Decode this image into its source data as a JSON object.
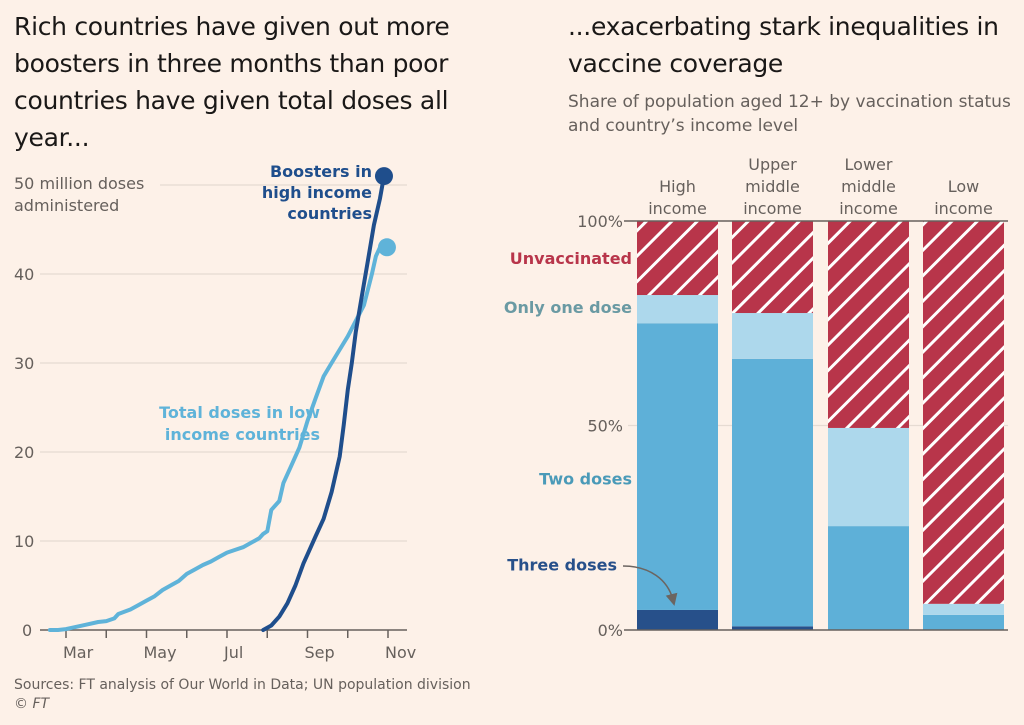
{
  "left_title": "Rich countries have given out more boosters in three months than poor countries have given total doses all year...",
  "right_title": "...exacerbating stark inequalities in vaccine coverage",
  "right_subtitle": "Share of population aged 12+ by vaccination status and country’s income level",
  "source": "Sources: FT analysis of Our World in Data; UN population division",
  "credit": "© FT",
  "colors": {
    "background": "#fdf1e8",
    "boosters": "#1f4e8c",
    "total_low": "#5fb3d9",
    "unvaccinated": "#b8354a",
    "one_dose": "#add8ec",
    "two_doses": "#5eb0d8",
    "three_doses": "#27508a",
    "unvaccinated_label": "#b8354a",
    "one_dose_label": "#6a9aa3",
    "two_doses_label": "#4a9ab8",
    "three_doses_label": "#27508a"
  },
  "chart_data": [
    {
      "type": "line",
      "title": "Rich countries have given out more boosters in three months than poor countries have given total doses all year...",
      "ylabel": "50 million doses administered",
      "ylabel_lines": [
        "50 million doses",
        "administered"
      ],
      "xlabel": "",
      "ylim": [
        0,
        50
      ],
      "yticks": [
        0,
        10,
        20,
        30,
        40,
        50
      ],
      "ytick_labels": [
        "0",
        "10",
        "20",
        "30",
        "40",
        ""
      ],
      "xlim_months": [
        1.6,
        10.5
      ],
      "xticks_months": [
        2,
        3,
        4,
        5,
        6,
        7,
        8,
        9,
        10
      ],
      "xtick_labels": [
        {
          "month": 2,
          "label": "Mar"
        },
        {
          "month": 4,
          "label": "May"
        },
        {
          "month": 6,
          "label": "Jul"
        },
        {
          "month": 8,
          "label": "Sep"
        },
        {
          "month": 10,
          "label": "Nov"
        }
      ],
      "grid": true,
      "series": [
        {
          "name": "Total doses in low income countries",
          "label_lines": [
            "Total doses in low",
            "income countries"
          ],
          "x": [
            1.6,
            1.8,
            2.0,
            2.2,
            2.5,
            2.8,
            3.0,
            3.2,
            3.3,
            3.6,
            3.8,
            4.0,
            4.2,
            4.4,
            4.6,
            4.8,
            5.0,
            5.2,
            5.4,
            5.6,
            5.8,
            6.0,
            6.2,
            6.4,
            6.6,
            6.8,
            6.9,
            7.0,
            7.1,
            7.3,
            7.4,
            7.6,
            7.8,
            8.0,
            8.2,
            8.4,
            8.6,
            8.8,
            9.0,
            9.4,
            9.6,
            9.7,
            9.8
          ],
          "y": [
            0,
            0,
            0.1,
            0.3,
            0.6,
            0.9,
            1.0,
            1.3,
            1.8,
            2.3,
            2.8,
            3.3,
            3.8,
            4.5,
            5.0,
            5.5,
            6.3,
            6.8,
            7.3,
            7.7,
            8.2,
            8.7,
            9.0,
            9.3,
            9.8,
            10.3,
            10.8,
            11.1,
            13.5,
            14.5,
            16.5,
            18.5,
            20.5,
            23.5,
            26.0,
            28.5,
            30.0,
            31.5,
            33.0,
            36.5,
            40.0,
            42.0,
            43.0
          ]
        },
        {
          "name": "Boosters in high income countries",
          "label_lines": [
            "Boosters in",
            "high income",
            "countries"
          ],
          "x": [
            6.9,
            7.1,
            7.3,
            7.5,
            7.7,
            7.9,
            8.0,
            8.2,
            8.4,
            8.6,
            8.8,
            8.9,
            9.0,
            9.1,
            9.2,
            9.35,
            9.5,
            9.65,
            9.8,
            9.9
          ],
          "y": [
            0,
            0.5,
            1.5,
            3.0,
            5.0,
            7.5,
            8.5,
            10.5,
            12.5,
            15.5,
            19.5,
            23.0,
            27.0,
            30.0,
            33.5,
            37.5,
            41.5,
            45.5,
            48.5,
            51.0
          ]
        }
      ]
    },
    {
      "type": "bar",
      "stacked": true,
      "title": "...exacerbating stark inequalities in vaccine coverage",
      "subtitle": "Share of population aged 12+ by vaccination status and country’s income level",
      "ylim": [
        0,
        100
      ],
      "yticks": [
        0,
        50,
        100
      ],
      "ytick_labels": [
        "0%",
        "50%",
        "100%"
      ],
      "categories": [
        "High income",
        "Upper middle income",
        "Lower middle income",
        "Low income"
      ],
      "category_lines": [
        [
          "High",
          "income"
        ],
        [
          "Upper",
          "middle",
          "income"
        ],
        [
          "Lower",
          "middle",
          "income"
        ],
        [
          "Low",
          "income"
        ]
      ],
      "series": [
        {
          "name": "Three doses",
          "values": [
            4.9,
            0.9,
            0.0,
            0.0
          ]
        },
        {
          "name": "Two doses",
          "values": [
            70.1,
            65.4,
            25.4,
            3.7
          ]
        },
        {
          "name": "Only one dose",
          "values": [
            6.9,
            11.2,
            24.0,
            2.7
          ]
        },
        {
          "name": "Unvaccinated",
          "values": [
            18.1,
            22.5,
            50.6,
            93.6
          ]
        }
      ],
      "legend": [
        {
          "name": "Unvaccinated",
          "level": 91
        },
        {
          "name": "Only one dose",
          "level": 79
        },
        {
          "name": "Two doses",
          "level": 37
        },
        {
          "name": "Three doses",
          "level": 16
        }
      ],
      "annotation": "arrow from 'Three doses' label to the high income three-dose segment"
    }
  ]
}
